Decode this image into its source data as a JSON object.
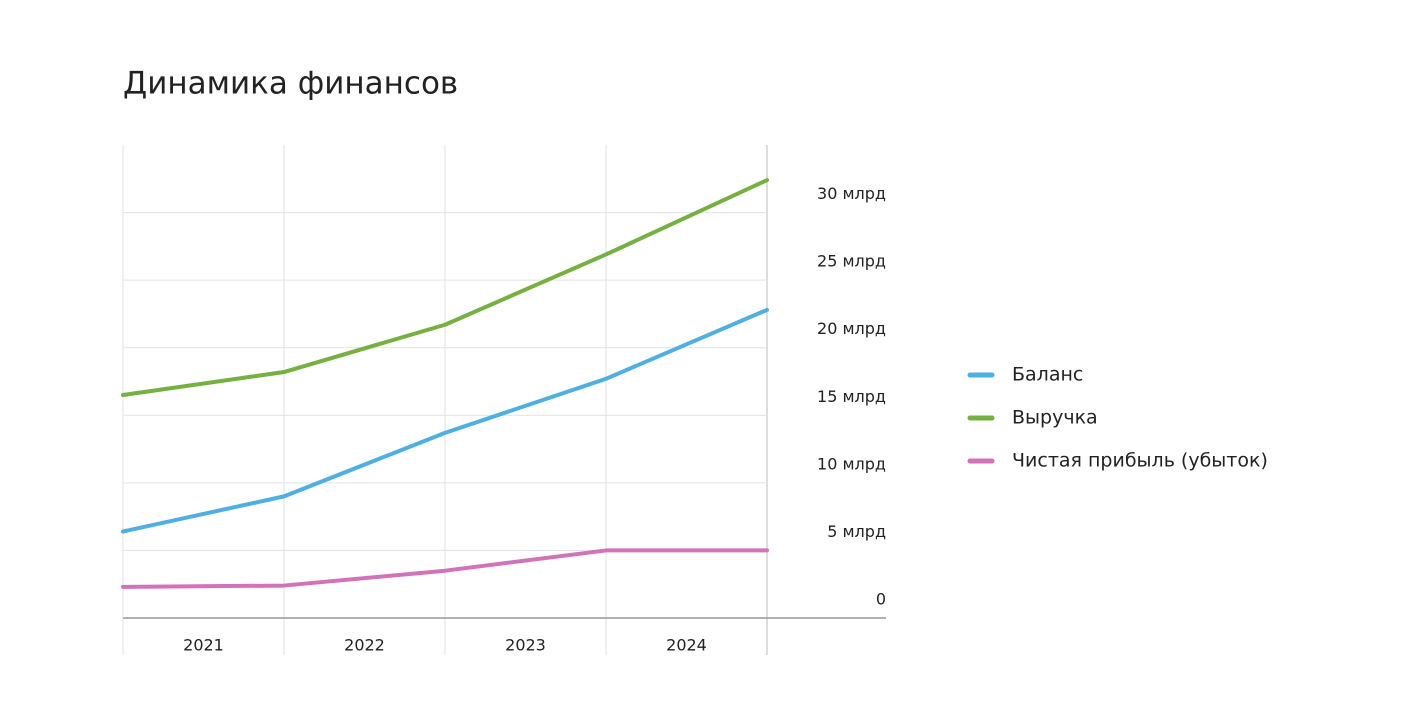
{
  "chart_data": {
    "type": "line",
    "title": "Динамика финансов",
    "categories": [
      "2021",
      "2022",
      "2023",
      "2024",
      null
    ],
    "series": [
      {
        "name": "Баланс",
        "color": "#4fafe0",
        "values": [
          6.4,
          9.0,
          13.7,
          17.7,
          22.8
        ]
      },
      {
        "name": "Выручка",
        "color": "#76b043",
        "values": [
          16.5,
          18.2,
          21.7,
          26.9,
          32.4
        ]
      },
      {
        "name": "Чистая прибыль (убыток)",
        "color": "#d272b8",
        "values": [
          2.3,
          2.4,
          3.5,
          5.0,
          5.0
        ]
      }
    ],
    "ylim": [
      0,
      35
    ],
    "yticks": [
      0,
      {
        "value": 5,
        "label": "5 млрд"
      },
      {
        "value": 10,
        "label": "10 млрд"
      },
      {
        "value": 15,
        "label": "15 млрд"
      },
      {
        "value": 20,
        "label": "20 млрд"
      },
      {
        "value": 25,
        "label": "25 млрд"
      },
      {
        "value": 30,
        "label": "30 млрд"
      }
    ],
    "grid": true,
    "legend": "right"
  }
}
